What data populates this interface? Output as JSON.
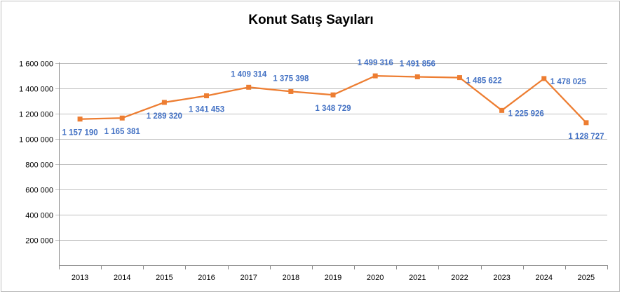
{
  "chart_data": {
    "type": "line",
    "title": "Konut Satış Sayıları",
    "xlabel": "",
    "ylabel": "",
    "categories": [
      "2013",
      "2014",
      "2015",
      "2016",
      "2017",
      "2018",
      "2019",
      "2020",
      "2021",
      "2022",
      "2023",
      "2024",
      "2025"
    ],
    "series": [
      {
        "values": [
          1157190,
          1165381,
          1289320,
          1341453,
          1409314,
          1375398,
          1348729,
          1499316,
          1491856,
          1485622,
          1225926,
          1478025,
          1128727
        ],
        "labels": [
          "1 157 190",
          "1 165 381",
          "1 289 320",
          "1 341 453",
          "1 409 314",
          "1 375 398",
          "1 348 729",
          "1 499 316",
          "1 491 856",
          "1 485 622",
          "1 225 926",
          "1 478 025",
          "1 128 727"
        ],
        "label_positions": [
          "below",
          "below",
          "below",
          "below",
          "above",
          "above",
          "below",
          "above",
          "above",
          "right",
          "right",
          "right",
          "below"
        ]
      }
    ],
    "ylim": [
      0,
      1600000
    ],
    "yticks": [
      0,
      200000,
      400000,
      600000,
      800000,
      1000000,
      1200000,
      1400000,
      1600000
    ],
    "ytick_labels": [
      "",
      "200 000",
      "400 000",
      "600 000",
      "800 000",
      "1 000 000",
      "1 200 000",
      "1 400 000",
      "1 600 000"
    ],
    "grid": true,
    "legend": "none",
    "colors": {
      "line": "#ed7d31",
      "labels": "#4472c4",
      "grid": "#bfbfbf"
    }
  }
}
